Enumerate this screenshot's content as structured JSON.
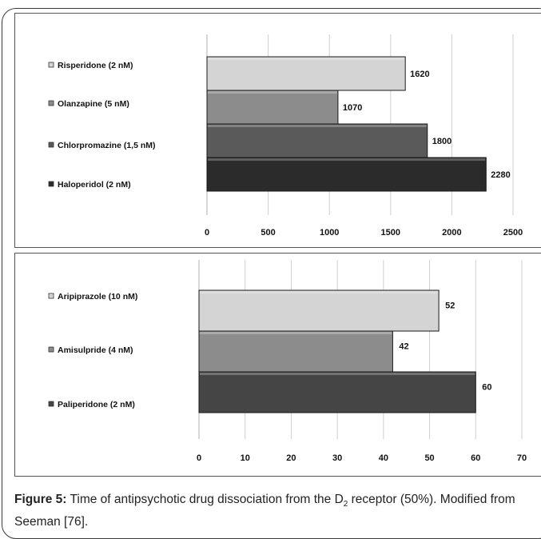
{
  "chart_data": [
    {
      "type": "bar",
      "orientation": "horizontal",
      "categories": [
        "Risperidone (2 nM)",
        "Olanzapine (5 nM)",
        "Chlorpromazine (1,5 nM)",
        "Haloperidol (2 nM)"
      ],
      "values": [
        1620,
        1070,
        1800,
        2280
      ],
      "data_labels": [
        "1620",
        "1070",
        "1800",
        "2280"
      ],
      "xlim": [
        0,
        2500
      ],
      "xticks": [
        "0",
        "500",
        "1000",
        "1500",
        "2000",
        "2500"
      ],
      "colors": [
        "#d4d4d4",
        "#8c8c8c",
        "#5a5a5a",
        "#2b2b2b"
      ],
      "legend": "left",
      "grid": true,
      "title": "",
      "xlabel": "",
      "ylabel": ""
    },
    {
      "type": "bar",
      "orientation": "horizontal",
      "categories": [
        "Aripiprazole (10 nM)",
        "Amisulpride (4 nM)",
        "Paliperidone (2 nM)"
      ],
      "values": [
        52,
        42,
        60
      ],
      "data_labels": [
        "52",
        "42",
        "60"
      ],
      "xlim": [
        0,
        70
      ],
      "xticks": [
        "0",
        "10",
        "20",
        "30",
        "40",
        "50",
        "60",
        "70"
      ],
      "colors": [
        "#d4d4d4",
        "#8c8c8c",
        "#454545"
      ],
      "legend": "left",
      "grid": true,
      "title": "",
      "xlabel": "",
      "ylabel": ""
    }
  ],
  "caption": {
    "label": "Figure 5:",
    "text_before_sub": " Time of antipsychotic drug dissociation from the D",
    "subscript": "2",
    "text_after_sub": " receptor (50%). Modified from Seeman [76]."
  }
}
